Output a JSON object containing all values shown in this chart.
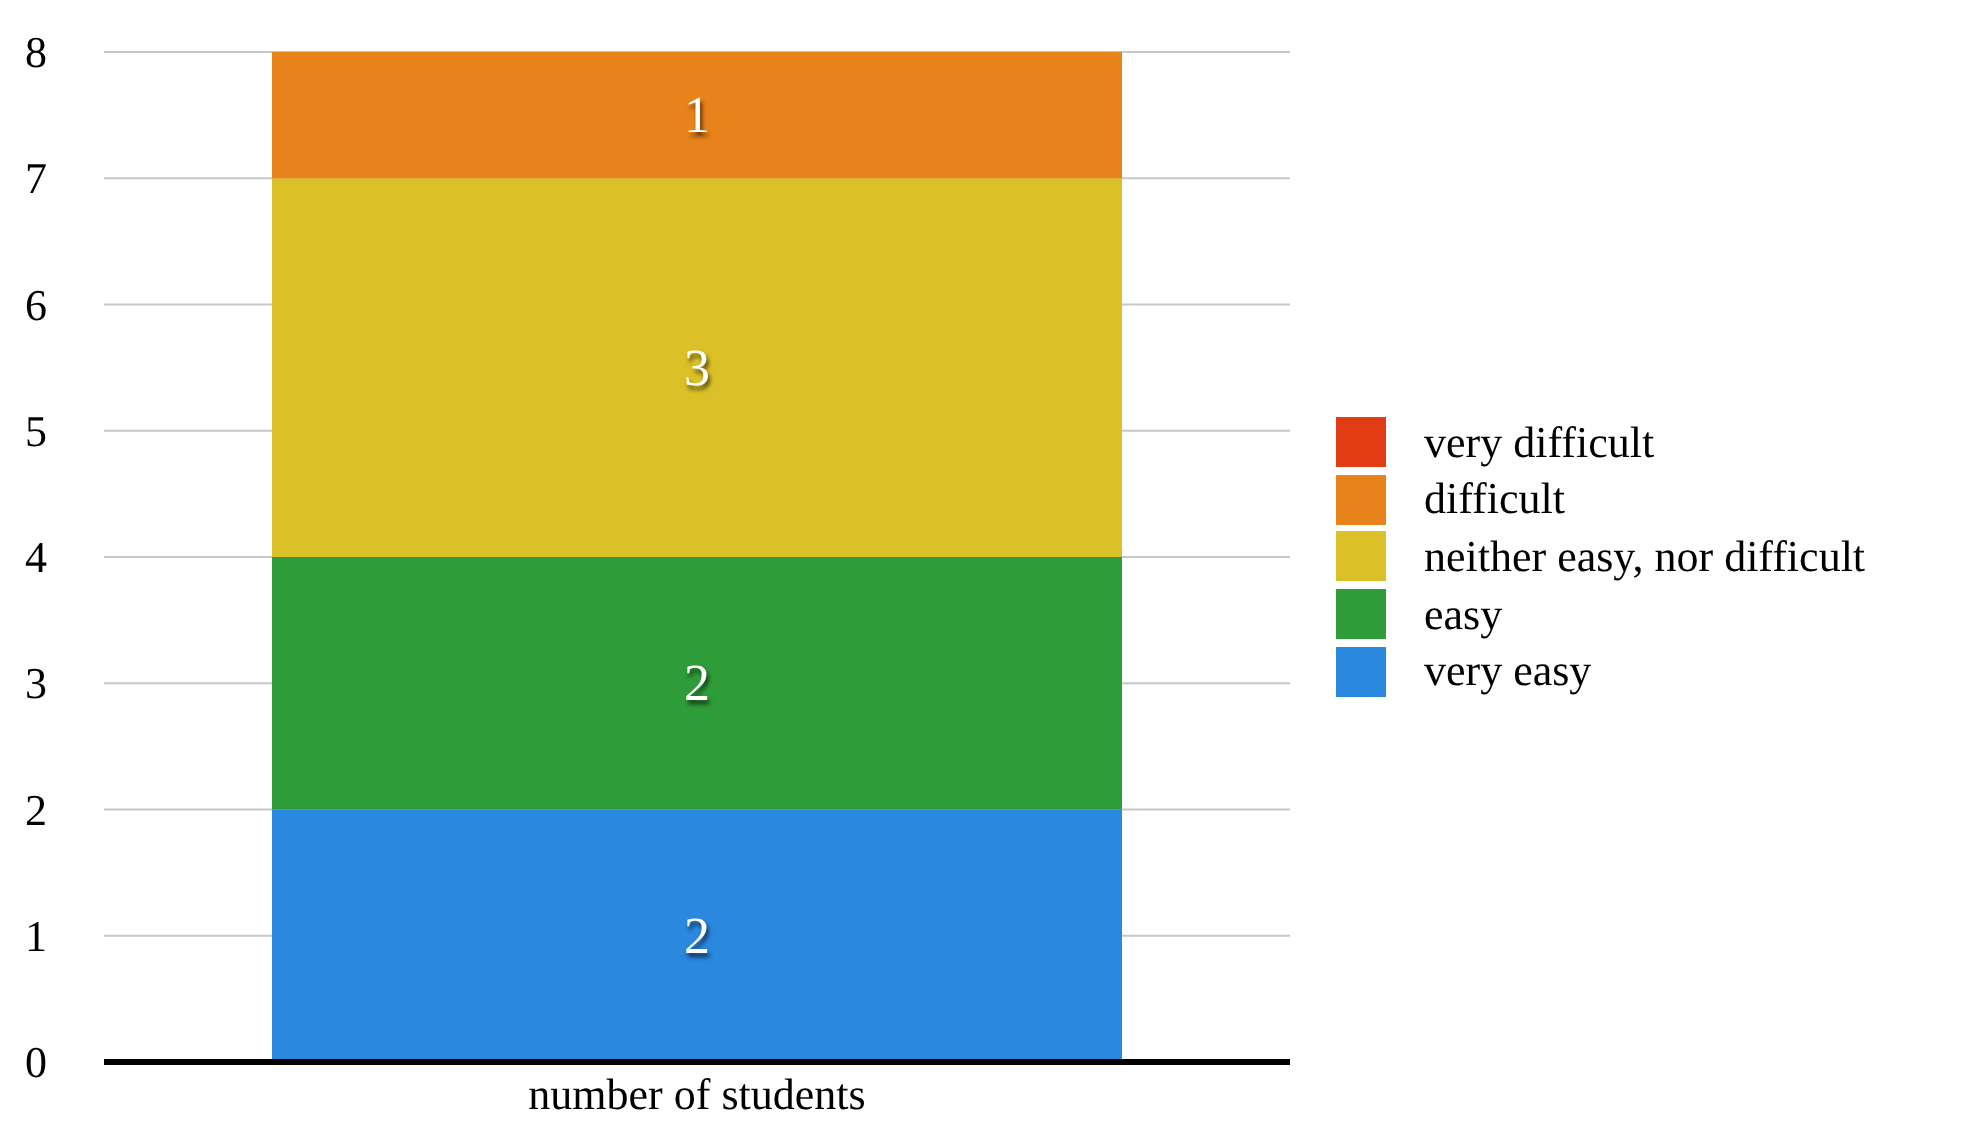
{
  "chart_data": {
    "type": "bar",
    "stacked": true,
    "categories": [
      "number of students"
    ],
    "series": [
      {
        "name": "very easy",
        "color": "#2a88df",
        "values": [
          2
        ],
        "value_labels": [
          "2"
        ]
      },
      {
        "name": "easy",
        "color": "#2e9c38",
        "values": [
          2
        ],
        "value_labels": [
          "2"
        ]
      },
      {
        "name": "neither easy, nor difficult",
        "color": "#dcc028",
        "values": [
          3
        ],
        "value_labels": [
          "3"
        ]
      },
      {
        "name": "difficult",
        "color": "#e8821a",
        "values": [
          1
        ],
        "value_labels": [
          "1"
        ]
      },
      {
        "name": "very difficult",
        "color": "#e23c14",
        "values": [
          0
        ],
        "value_labels": [
          null
        ]
      }
    ],
    "ylim": [
      0,
      8
    ],
    "yticks": [
      0,
      1,
      2,
      3,
      4,
      5,
      6,
      7,
      8
    ],
    "grid": "y",
    "legend": "right"
  }
}
